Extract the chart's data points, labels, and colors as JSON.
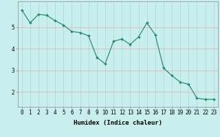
{
  "x": [
    0,
    1,
    2,
    3,
    4,
    5,
    6,
    7,
    8,
    9,
    10,
    11,
    12,
    13,
    14,
    15,
    16,
    17,
    18,
    19,
    20,
    21,
    22,
    23
  ],
  "y": [
    5.8,
    5.2,
    5.6,
    5.55,
    5.3,
    5.1,
    4.8,
    4.75,
    4.6,
    3.6,
    3.3,
    4.35,
    4.45,
    4.2,
    4.55,
    5.2,
    4.65,
    3.1,
    2.75,
    2.45,
    2.35,
    1.7,
    1.65,
    1.65
  ],
  "line_color": "#2e8b6e",
  "marker": "D",
  "marker_size": 2.0,
  "bg_color": "#c8eeee",
  "grid_white_color": "#aadddd",
  "grid_red_color": "#e8b0b0",
  "xlabel": "Humidex (Indice chaleur)",
  "ylim": [
    1.3,
    6.2
  ],
  "xlim": [
    -0.5,
    23.5
  ],
  "yticks": [
    2,
    3,
    4,
    5
  ],
  "xticks": [
    0,
    1,
    2,
    3,
    4,
    5,
    6,
    7,
    8,
    9,
    10,
    11,
    12,
    13,
    14,
    15,
    16,
    17,
    18,
    19,
    20,
    21,
    22,
    23
  ],
  "xlabel_fontsize": 6.5,
  "tick_fontsize": 5.5,
  "linewidth": 0.9
}
